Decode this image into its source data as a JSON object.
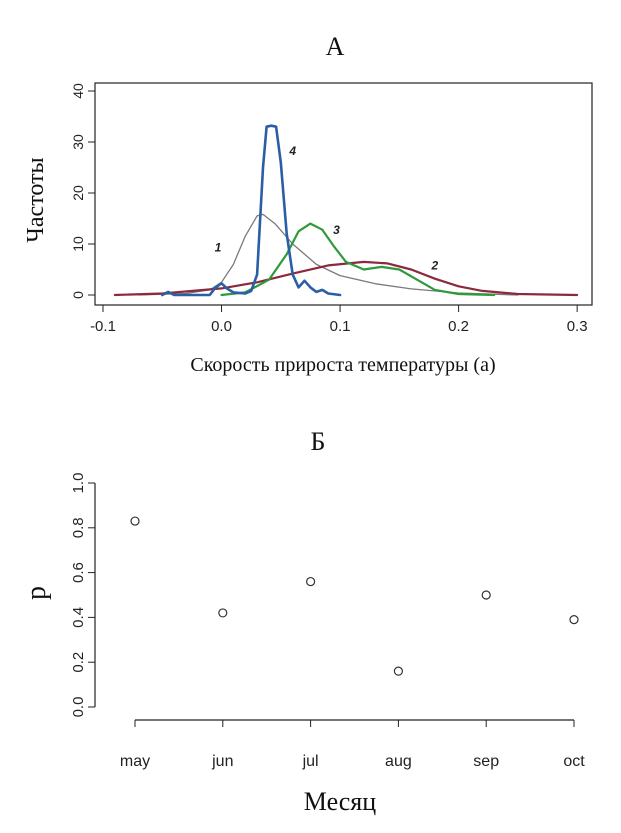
{
  "chart_data": [
    {
      "panel": "A",
      "type": "line",
      "title": "А",
      "xlabel": "Скорость прироста температуры (a)",
      "ylabel": "Частоты",
      "xlim": [
        -0.1,
        0.31
      ],
      "ylim": [
        0,
        40
      ],
      "xticks": [
        "-0.1",
        "0.0",
        "0.1",
        "0.2",
        "0.3"
      ],
      "yticks": [
        "0",
        "10",
        "20",
        "30",
        "40"
      ],
      "grid": false,
      "series": [
        {
          "name": "1",
          "color": "#7a7a7a",
          "x": [
            -0.07,
            -0.03,
            -0.01,
            0.0,
            0.01,
            0.02,
            0.03,
            0.035,
            0.045,
            0.06,
            0.08,
            0.1,
            0.13,
            0.16,
            0.2,
            0.25
          ],
          "y": [
            0,
            0.3,
            1.0,
            2.5,
            6.0,
            11.5,
            15.5,
            15.8,
            14.0,
            10.0,
            6.0,
            3.8,
            2.2,
            1.2,
            0.4,
            0
          ]
        },
        {
          "name": "2",
          "color": "#8b2a3d",
          "x": [
            -0.09,
            -0.05,
            0.0,
            0.03,
            0.06,
            0.09,
            0.12,
            0.14,
            0.16,
            0.18,
            0.2,
            0.22,
            0.25,
            0.3
          ],
          "y": [
            0,
            0.3,
            1.3,
            2.5,
            4.2,
            5.8,
            6.5,
            6.2,
            5.0,
            3.2,
            1.7,
            0.8,
            0.2,
            0
          ]
        },
        {
          "name": "3",
          "color": "#2e9a3a",
          "x": [
            0.0,
            0.02,
            0.04,
            0.055,
            0.065,
            0.075,
            0.085,
            0.095,
            0.105,
            0.12,
            0.135,
            0.15,
            0.165,
            0.18,
            0.2,
            0.23
          ],
          "y": [
            0,
            0.5,
            3.0,
            8.0,
            12.5,
            14.0,
            12.8,
            9.5,
            6.5,
            5.0,
            5.5,
            5.0,
            3.0,
            1.0,
            0.2,
            0
          ]
        },
        {
          "name": "4",
          "color": "#2a5fa6",
          "x": [
            -0.05,
            -0.045,
            -0.04,
            -0.01,
            -0.005,
            0.0,
            0.005,
            0.01,
            0.02,
            0.025,
            0.03,
            0.035,
            0.038,
            0.042,
            0.046,
            0.05,
            0.055,
            0.06,
            0.065,
            0.07,
            0.075,
            0.08,
            0.085,
            0.09,
            0.1
          ],
          "y": [
            0,
            0.6,
            0,
            0,
            1.5,
            2.3,
            1.2,
            0.5,
            0.3,
            0.8,
            4.0,
            25.0,
            33.0,
            33.2,
            33.0,
            26.0,
            12.0,
            4.0,
            1.5,
            2.8,
            1.5,
            0.6,
            1.0,
            0.3,
            0
          ]
        }
      ],
      "annotations": [
        {
          "text": "1",
          "x": -0.003,
          "y": 8.5
        },
        {
          "text": "2",
          "x": 0.18,
          "y": 5.0
        },
        {
          "text": "3",
          "x": 0.097,
          "y": 12.0
        },
        {
          "text": "4",
          "x": 0.06,
          "y": 27.5
        }
      ]
    },
    {
      "panel": "Б",
      "type": "scatter",
      "title": "Б",
      "xlabel": "Месяц",
      "ylabel": "p",
      "categories": [
        "may",
        "jun",
        "jul",
        "aug",
        "sep",
        "oct"
      ],
      "values": [
        0.83,
        0.42,
        0.56,
        0.16,
        0.5,
        0.39
      ],
      "ylim": [
        0,
        1
      ],
      "yticks": [
        "0.0",
        "0.2",
        "0.4",
        "0.6",
        "0.8",
        "1.0"
      ],
      "grid": false,
      "marker": "open-circle"
    }
  ]
}
